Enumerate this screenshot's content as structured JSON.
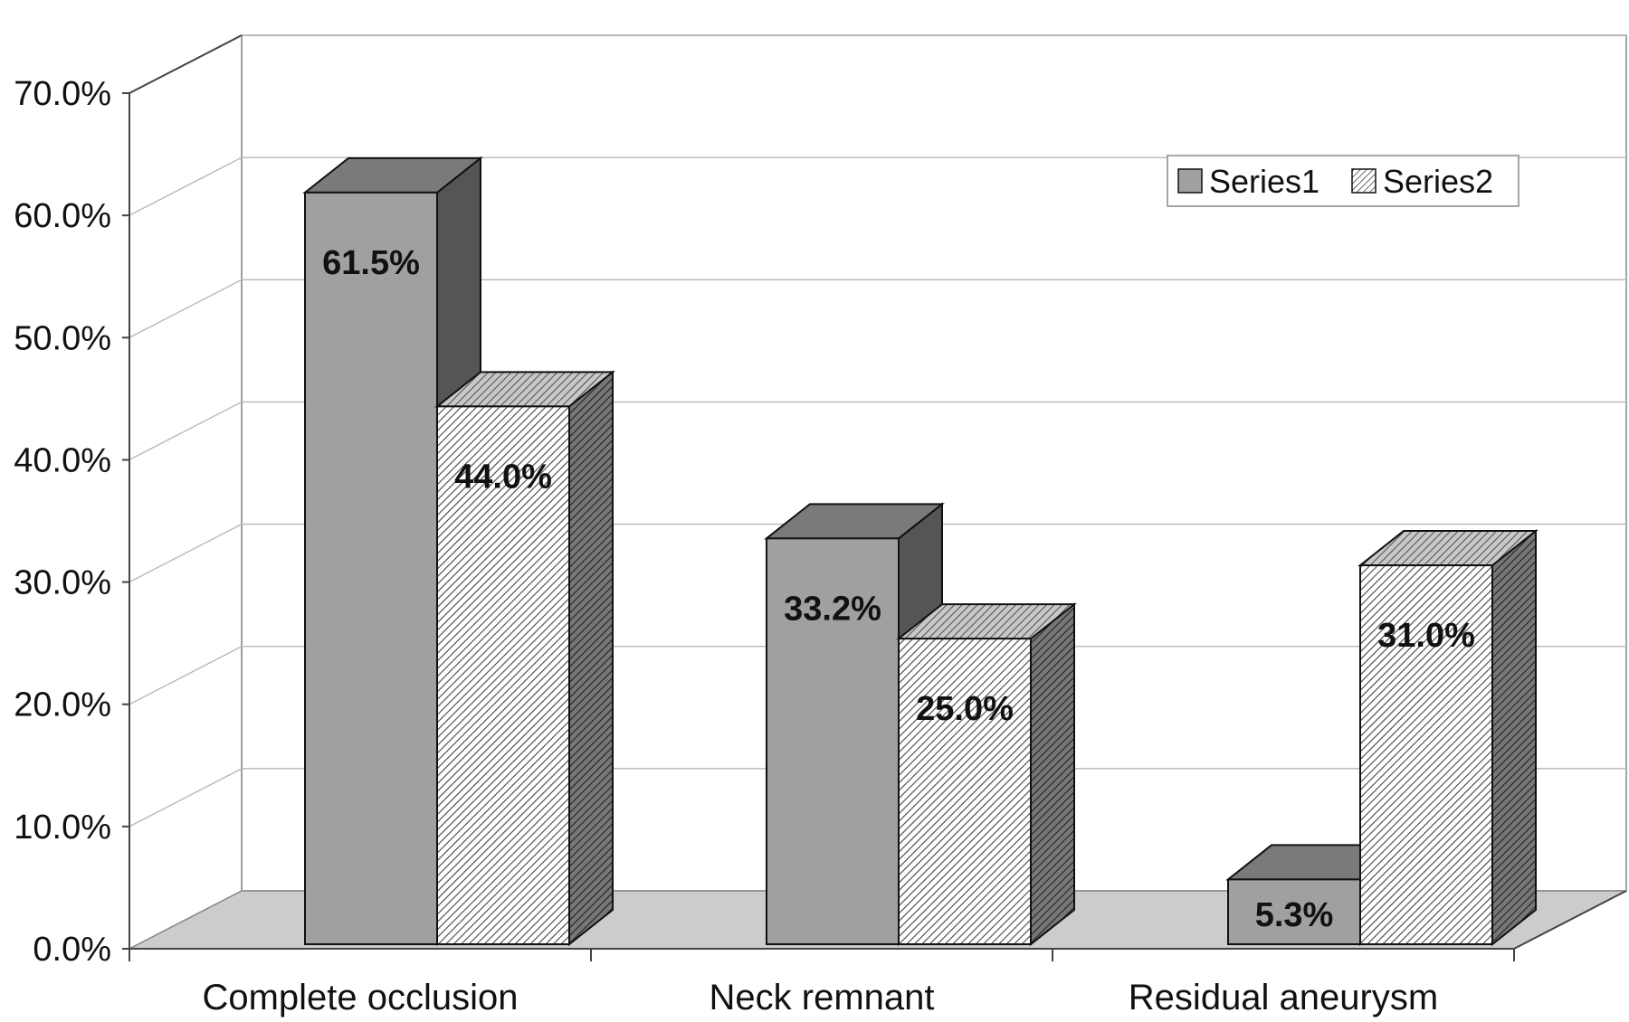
{
  "chart_data": {
    "type": "bar",
    "style": "3d-clustered-column",
    "categories": [
      "Complete occlusion",
      "Neck remnant",
      "Residual aneurysm"
    ],
    "series": [
      {
        "name": "Series1",
        "values": [
          61.5,
          33.2,
          5.3
        ],
        "labels": [
          "61.5%",
          "33.2%",
          "5.3%"
        ],
        "color": "#a0a0a0",
        "pattern": "solid"
      },
      {
        "name": "Series2",
        "values": [
          44.0,
          25.0,
          31.0
        ],
        "labels": [
          "44.0%",
          "25.0%",
          "31.0%"
        ],
        "color": "#ffffff",
        "pattern": "diagonal-hatch"
      }
    ],
    "yticks": [
      "0.0%",
      "10.0%",
      "20.0%",
      "30.0%",
      "40.0%",
      "50.0%",
      "60.0%",
      "70.0%"
    ],
    "ylim": [
      0,
      70
    ],
    "title": "",
    "xlabel": "",
    "ylabel": "",
    "grid": true,
    "legend": {
      "position": "top-right",
      "entries": [
        "Series1",
        "Series2"
      ]
    }
  }
}
